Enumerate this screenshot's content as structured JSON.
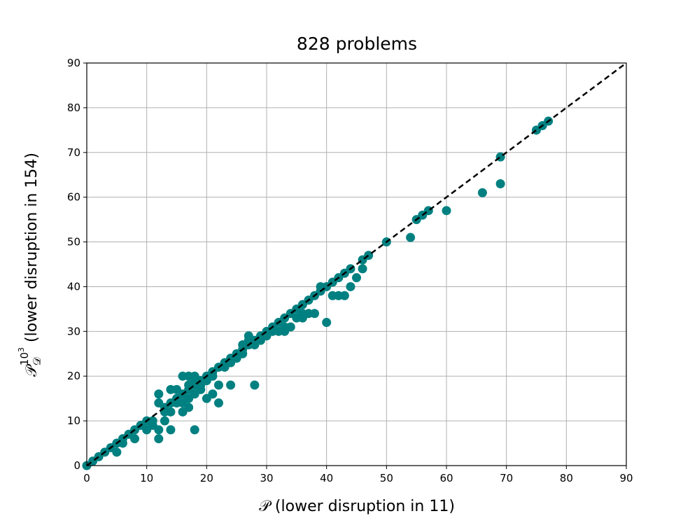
{
  "chart_data": {
    "type": "scatter",
    "title": "828 problems",
    "xlabel": "𝒫 (lower disruption in 11)",
    "ylabel": {
      "symbol": "𝒫",
      "subscript": "𝒟",
      "superscript": "10",
      "superscript_exponent": "3",
      "text": " (lower disruption in 154)"
    },
    "color": "#008080",
    "x": [
      77,
      76,
      75,
      69,
      69,
      66,
      60,
      57,
      56,
      55,
      54,
      50,
      47,
      46,
      46,
      45,
      44,
      44,
      43,
      42,
      42,
      41,
      40,
      40,
      39,
      38,
      38,
      36,
      36,
      35,
      35,
      34,
      33,
      32,
      31,
      30,
      30,
      28,
      28,
      27,
      27,
      26,
      25,
      24,
      22,
      22,
      23,
      21,
      20,
      20,
      19,
      18,
      18,
      17,
      17,
      16,
      16,
      16,
      15,
      14,
      14,
      14,
      13,
      13,
      12,
      12,
      12,
      12,
      11,
      11,
      10,
      10,
      9,
      8,
      8,
      7,
      6,
      6,
      5,
      5,
      4,
      3,
      2,
      1,
      0,
      21,
      22,
      24,
      29,
      31,
      32,
      33,
      37,
      27,
      26,
      29,
      15,
      16,
      17,
      18,
      19,
      14,
      15,
      13,
      17,
      18,
      21,
      23,
      25,
      26,
      28,
      37,
      39,
      41,
      17,
      19,
      20,
      18,
      24,
      36,
      34,
      33,
      43
    ],
    "values": [
      77,
      76,
      75,
      69,
      63,
      61,
      57,
      57,
      56,
      55,
      51,
      50,
      47,
      46,
      44,
      42,
      44,
      40,
      43,
      42,
      38,
      38,
      40,
      32,
      39,
      38,
      34,
      36,
      33,
      33,
      35,
      34,
      30,
      30,
      31,
      30,
      29,
      18,
      28,
      29,
      27,
      26,
      25,
      18,
      14,
      18,
      23,
      16,
      15,
      19,
      19,
      8,
      20,
      20,
      17,
      20,
      12,
      16,
      17,
      17,
      8,
      12,
      13,
      10,
      16,
      14,
      6,
      8,
      10,
      9,
      10,
      8,
      9,
      8,
      6,
      7,
      6,
      5,
      5,
      3,
      4,
      3,
      2,
      1,
      0,
      21,
      22,
      24,
      29,
      30,
      32,
      33,
      37,
      28,
      27,
      28,
      14,
      14,
      15,
      16,
      17,
      14,
      15,
      12,
      13,
      19,
      20,
      22,
      24,
      25,
      27,
      34,
      40,
      41,
      18,
      18,
      20,
      18,
      23,
      34,
      31,
      31,
      38
    ],
    "xlim": [
      0,
      90
    ],
    "ylim": [
      0,
      90
    ],
    "xticks": [
      0,
      10,
      20,
      30,
      40,
      50,
      60,
      70,
      80,
      90
    ],
    "yticks": [
      0,
      10,
      20,
      30,
      40,
      50,
      60,
      70,
      80,
      90
    ],
    "grid": true,
    "reference_line": {
      "x": [
        0,
        90
      ],
      "y": [
        0,
        90
      ],
      "color": "#000000",
      "style": "dashed"
    }
  }
}
